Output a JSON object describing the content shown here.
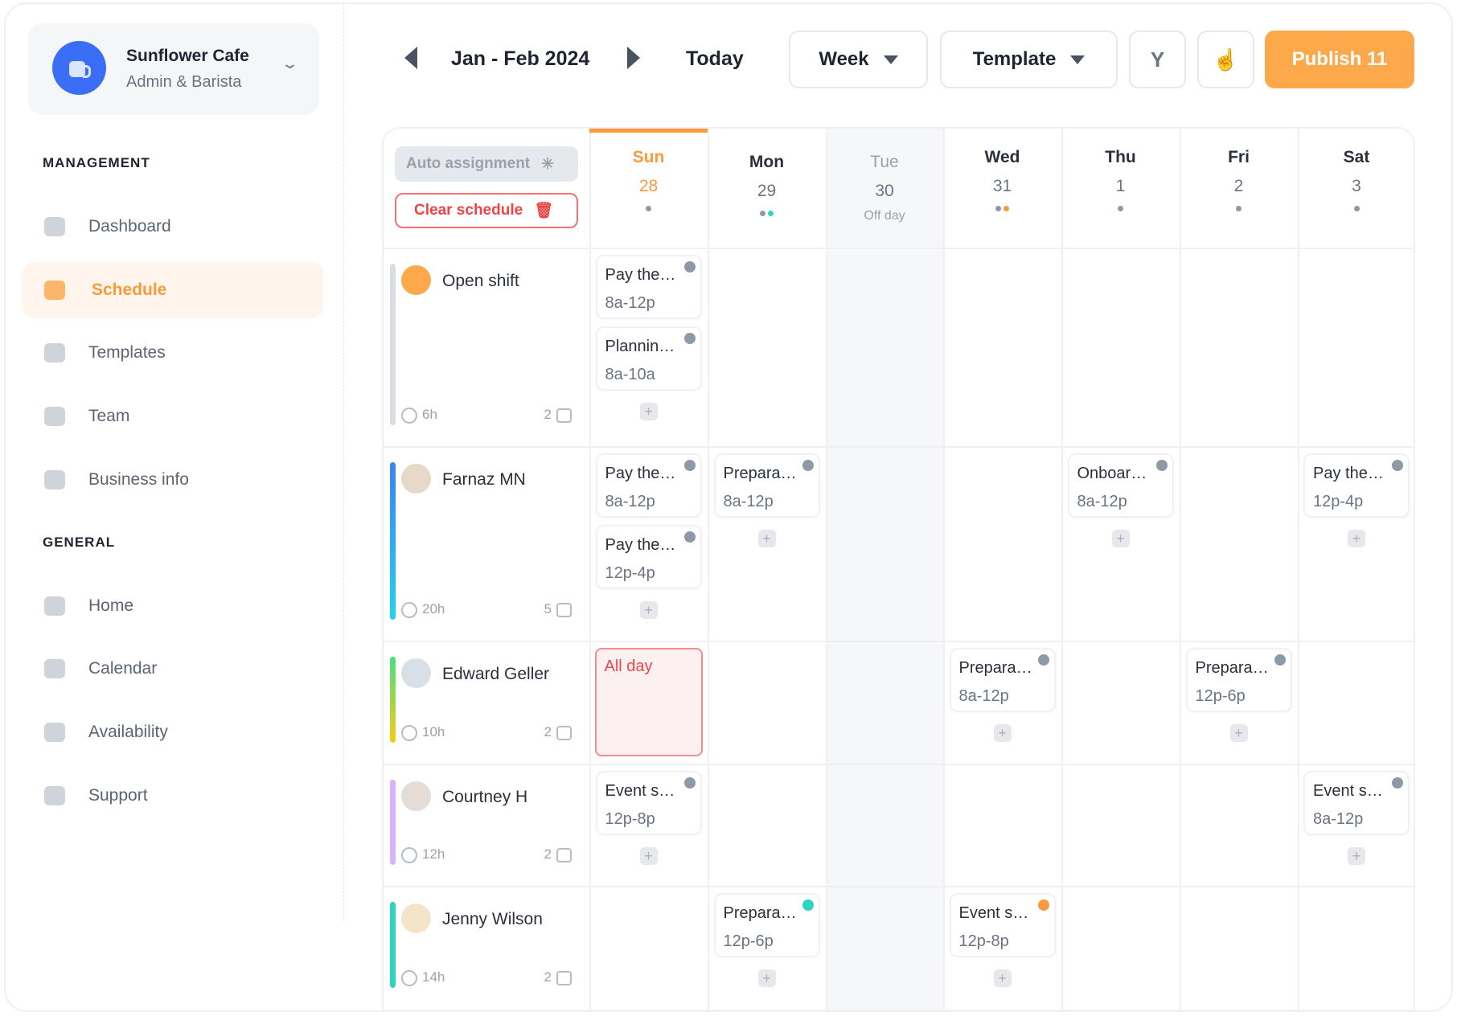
{
  "workspace": {
    "name": "Sunflower Cafe",
    "role": "Admin & Barista"
  },
  "sidebar": {
    "sections": [
      {
        "title": "MANAGEMENT"
      },
      {
        "title": "GENERAL"
      }
    ],
    "items": [
      {
        "label": "Dashboard",
        "icon": "pie-chart-icon"
      },
      {
        "label": "Schedule",
        "icon": "calendar-icon",
        "active": true
      },
      {
        "label": "Templates",
        "icon": "list-icon"
      },
      {
        "label": "Team",
        "icon": "team-icon"
      },
      {
        "label": "Business info",
        "icon": "store-icon"
      },
      {
        "label": "Home",
        "icon": "home-icon"
      },
      {
        "label": "Calendar",
        "icon": "calendar-date-icon"
      },
      {
        "label": "Availability",
        "icon": "clock-icon"
      },
      {
        "label": "Support",
        "icon": "support-24-icon"
      }
    ]
  },
  "toolbar": {
    "range": "Jan - Feb 2024",
    "today": "Today",
    "view": "Week",
    "template": "Template",
    "publish": "Publish 11"
  },
  "actions": {
    "auto_assignment": "Auto assignment",
    "clear_schedule": "Clear schedule"
  },
  "colors": {
    "accent": "#fda84a",
    "gray": "#8e98a6",
    "teal": "#2dd4bf",
    "orange": "#fb9a3c"
  },
  "days": [
    {
      "name": "Sun",
      "date": "28",
      "dots": [
        "gray"
      ],
      "today": true
    },
    {
      "name": "Mon",
      "date": "29",
      "dots": [
        "gray",
        "teal"
      ]
    },
    {
      "name": "Tue",
      "date": "30",
      "off": "Off day",
      "dots": []
    },
    {
      "name": "Wed",
      "date": "31",
      "dots": [
        "gray",
        "orange"
      ]
    },
    {
      "name": "Thu",
      "date": "1",
      "dots": [
        "gray"
      ]
    },
    {
      "name": "Fri",
      "date": "2",
      "dots": [
        "gray"
      ]
    },
    {
      "name": "Sat",
      "date": "3",
      "dots": [
        "gray"
      ]
    }
  ],
  "rows": [
    {
      "name": "Open shift",
      "hours": "6h",
      "count": "2",
      "bar": "#d9dde3",
      "avatar": "#fda84a",
      "shifts": {
        "0": [
          {
            "title": "Pay the…",
            "time": "8a-12p",
            "dot": "gray"
          },
          {
            "title": "Plannin…",
            "time": "8a-10a",
            "dot": "gray"
          }
        ]
      },
      "add": [
        0
      ]
    },
    {
      "name": "Farnaz MN",
      "hours": "20h",
      "count": "5",
      "bar": "linear-gradient(#3b82f6,#22d3ee)",
      "avatar": "#e8d8c8",
      "shifts": {
        "0": [
          {
            "title": "Pay the…",
            "time": "8a-12p",
            "dot": "gray"
          },
          {
            "title": "Pay the…",
            "time": "12p-4p",
            "dot": "gray"
          }
        ],
        "1": [
          {
            "title": "Prepara…",
            "time": "8a-12p",
            "dot": "gray"
          }
        ],
        "4": [
          {
            "title": "Onboar…",
            "time": "8a-12p",
            "dot": "gray"
          }
        ],
        "6": [
          {
            "title": "Pay the…",
            "time": "12p-4p",
            "dot": "gray"
          }
        ]
      },
      "add": [
        0,
        1,
        4,
        6
      ]
    },
    {
      "name": "Edward Geller",
      "hours": "10h",
      "count": "2",
      "bar": "linear-gradient(#4ade80,#facc15)",
      "avatar": "#d9dfe6",
      "allday": {
        "day": 0,
        "label": "All day"
      },
      "shifts": {
        "3": [
          {
            "title": "Prepara…",
            "time": "8a-12p",
            "dot": "gray"
          }
        ],
        "5": [
          {
            "title": "Prepara…",
            "time": "12p-6p",
            "dot": "gray"
          }
        ]
      },
      "add": [
        3,
        5
      ]
    },
    {
      "name": "Courtney H",
      "hours": "12h",
      "count": "2",
      "bar": "#d8b4fe",
      "avatar": "#e5dcd6",
      "shifts": {
        "0": [
          {
            "title": "Event s…",
            "time": "12p-8p",
            "dot": "gray"
          }
        ],
        "6": [
          {
            "title": "Event s…",
            "time": "8a-12p",
            "dot": "gray"
          }
        ]
      },
      "add": [
        0,
        6
      ]
    },
    {
      "name": "Jenny Wilson",
      "hours": "14h",
      "count": "2",
      "bar": "#2dd4bf",
      "avatar": "#f3e6c8",
      "shifts": {
        "1": [
          {
            "title": "Prepara…",
            "time": "12p-6p",
            "dot": "teal"
          }
        ],
        "3": [
          {
            "title": "Event s…",
            "time": "12p-8p",
            "dot": "orange"
          }
        ]
      },
      "add": [
        1,
        3
      ]
    }
  ]
}
